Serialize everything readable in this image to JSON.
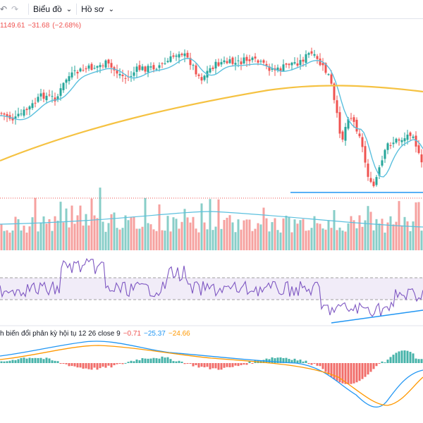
{
  "toolbar": {
    "undo_icon": "undo-icon",
    "redo_icon": "redo-icon",
    "chart_menu": "Biểu đồ",
    "profile_menu": "Hồ sơ"
  },
  "price_legend": {
    "close": "1149.61",
    "change": "−31.68",
    "change_pct": "(−2.68%)"
  },
  "macd_legend": {
    "label": "h biến đổi phân kỳ hội tụ 12 26 close 9",
    "histogram": "−0.71",
    "macd": "−25.37",
    "signal": "−24.66"
  },
  "colors": {
    "up": "#26a69a",
    "down": "#ef5350",
    "ma_fast": "#5bc0de",
    "ma_slow": "#f5c242",
    "rsi": "#7e57c2",
    "macd_line": "#2196f3",
    "signal_line": "#ff9800",
    "trendline": "#2196f3"
  }
}
